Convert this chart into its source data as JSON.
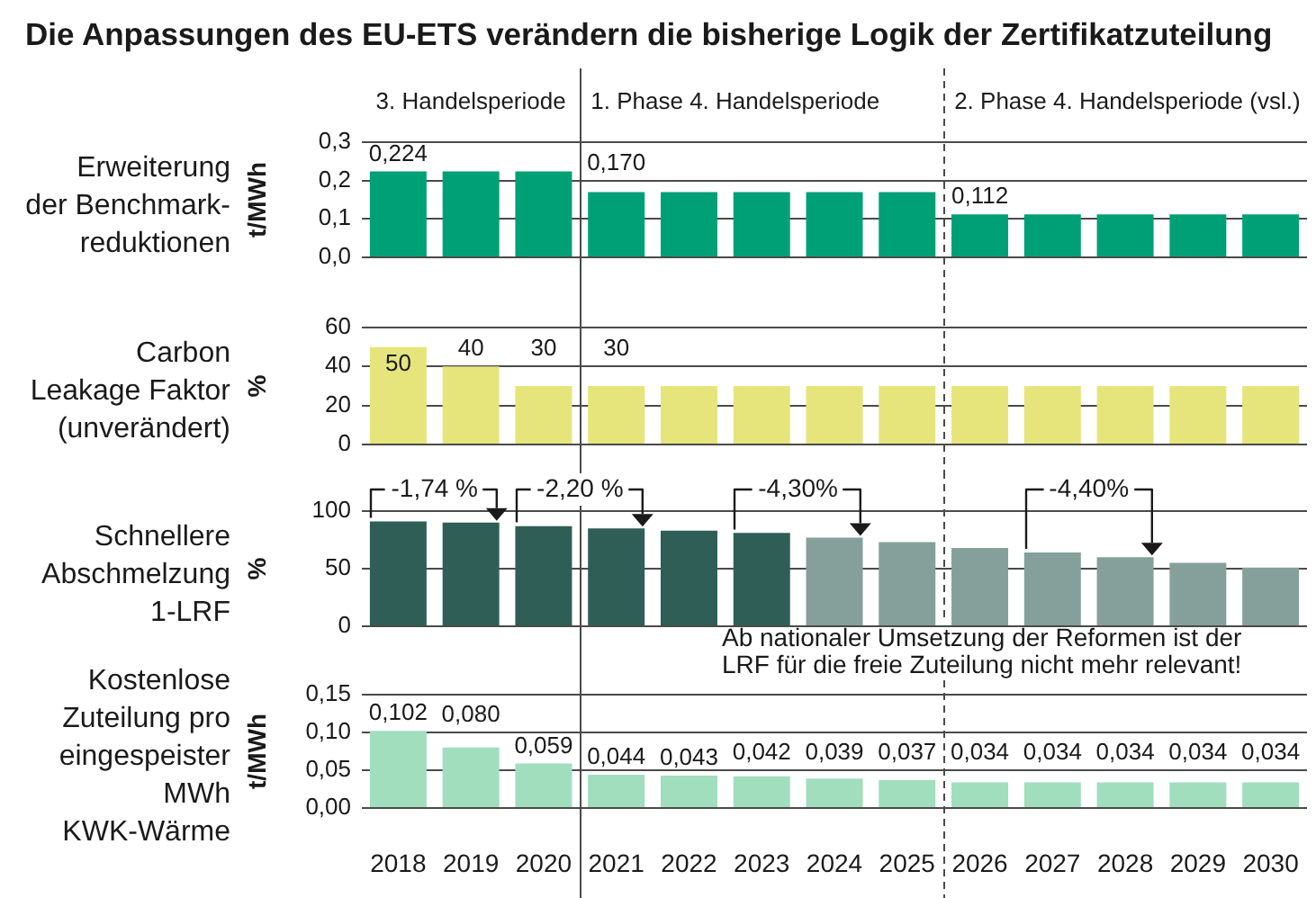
{
  "chart_data": [
    {
      "type": "bar",
      "title": "Die Anpassungen des EU-ETS verändern die bisherige Logik der Zertifikatzuteilung",
      "subtitle": "Erweiterung\nder Benchmark-\nreduktionen",
      "ylabel": "t/MWh",
      "x": [
        2018,
        2019,
        2020,
        2021,
        2022,
        2023,
        2024,
        2025,
        2026,
        2027,
        2028,
        2029,
        2030
      ],
      "values": [
        0.224,
        0.224,
        0.224,
        0.17,
        0.17,
        0.17,
        0.17,
        0.17,
        0.112,
        0.112,
        0.112,
        0.112,
        0.112
      ],
      "color": "#00a077",
      "value_labels": [
        "0,224",
        null,
        null,
        "0,170",
        null,
        null,
        null,
        null,
        "0,112",
        null,
        null,
        null,
        null
      ],
      "xlim": [
        2017.5,
        2030.5
      ],
      "ylim": [
        0,
        0.3
      ],
      "yticks": [
        {
          "value": 0,
          "label": "0,0"
        },
        {
          "value": 0.1,
          "label": "0,1"
        },
        {
          "value": 0.2,
          "label": "0,2"
        },
        {
          "value": 0.3,
          "label": "0,3"
        }
      ],
      "grid": "y",
      "tick_labels": "y",
      "annotations": [
        "3. Handelsperiode"
      ],
      "ref_lines": [
        {
          "axis": "x",
          "value": 2020.5,
          "line_style": "solid",
          "color": "#4a4a4a",
          "label": "1. Phase 4. Handelsperiode"
        },
        {
          "axis": "x",
          "value": 2025.5,
          "line_style": "dashed",
          "color": "#4a4a4a",
          "label": "2. Phase 4. Handelsperiode (vsl.)"
        }
      ]
    },
    {
      "type": "bar",
      "title": "Carbon\nLeakage Faktor\n(unverändert)",
      "ylabel": "%",
      "x": [
        2018,
        2019,
        2020,
        2021,
        2022,
        2023,
        2024,
        2025,
        2026,
        2027,
        2028,
        2029,
        2030
      ],
      "values": [
        50,
        40,
        30,
        30,
        30,
        30,
        30,
        30,
        30,
        30,
        30,
        30,
        30
      ],
      "color": "#e6e57c",
      "value_labels": [
        "50",
        "40",
        "30",
        "30",
        null,
        null,
        null,
        null,
        null,
        null,
        null,
        null,
        null
      ],
      "xlim": [
        2017.5,
        2030.5
      ],
      "ylim": [
        0,
        60
      ],
      "yticks": [
        0,
        20,
        40,
        60
      ],
      "grid": "y",
      "tick_labels": "y",
      "ref_lines": [
        {
          "axis": "x",
          "value": 2020.5,
          "line_style": "solid",
          "color": "#4a4a4a"
        },
        {
          "axis": "x",
          "value": 2025.5,
          "line_style": "dashed",
          "color": "#4a4a4a"
        }
      ]
    },
    {
      "type": "bar",
      "title": "Schnellere\nAbschmelzung\n1-LRF",
      "ylabel": "%",
      "x": [
        2018,
        2019,
        2020,
        2021,
        2022,
        2023,
        2024,
        2025,
        2026,
        2027,
        2028,
        2029,
        2030
      ],
      "values": [
        91,
        90,
        87,
        85,
        83,
        81,
        77,
        73,
        68,
        64,
        60,
        55,
        51
      ],
      "colors": [
        "#2f5e57",
        "#2f5e57",
        "#2f5e57",
        "#2f5e57",
        "#2f5e57",
        "#2f5e57",
        "#85a09a",
        "#85a09a",
        "#85a09a",
        "#85a09a",
        "#85a09a",
        "#85a09a",
        "#85a09a"
      ],
      "xlim": [
        2017.5,
        2030.5
      ],
      "ylim": [
        0,
        100
      ],
      "yticks": [
        0,
        50,
        100
      ],
      "grid": "y",
      "tick_labels": "y",
      "annotations": [
        {
          "text": "-1,74 %",
          "x": 2019,
          "y": 90
        },
        {
          "text": "-2,20 %",
          "x": 2021,
          "y": 85
        },
        {
          "text": "-4,30%",
          "x": 2024,
          "y": 77
        },
        {
          "text": "-4,40%",
          "x": 2028,
          "y": 60
        },
        "Ab nationaler Umsetzung der Reformen ist der LRF für die freie Zuteilung nicht mehr relevant!"
      ],
      "ref_lines": [
        {
          "axis": "x",
          "value": 2020.5,
          "line_style": "solid",
          "color": "#4a4a4a"
        },
        {
          "axis": "x",
          "value": 2025.5,
          "line_style": "dashed",
          "color": "#4a4a4a"
        }
      ]
    },
    {
      "type": "bar",
      "title": "Kostenlose\nZuteilung pro\neingespeister\nMWh\nKWK-Wärme",
      "ylabel": "t/MWh",
      "x": [
        2018,
        2019,
        2020,
        2021,
        2022,
        2023,
        2024,
        2025,
        2026,
        2027,
        2028,
        2029,
        2030
      ],
      "values": [
        0.102,
        0.08,
        0.059,
        0.044,
        0.043,
        0.042,
        0.039,
        0.037,
        0.034,
        0.034,
        0.034,
        0.034,
        0.034
      ],
      "color": "#a0debe",
      "value_labels": [
        "0,102",
        "0,080",
        "0,059",
        "0,044",
        "0,043",
        "0,042",
        "0,039",
        "0,037",
        "0,034",
        "0,034",
        "0,034",
        "0,034",
        "0,034"
      ],
      "xlim": [
        2017.5,
        2030.5
      ],
      "xticks": [
        2018,
        2019,
        2020,
        2021,
        2022,
        2023,
        2024,
        2025,
        2026,
        2027,
        2028,
        2029,
        2030
      ],
      "ylim": [
        0,
        0.15
      ],
      "yticks": [
        {
          "value": 0,
          "label": "0,00"
        },
        {
          "value": 0.05,
          "label": "0,05"
        },
        {
          "value": 0.1,
          "label": "0,10"
        },
        {
          "value": 0.15,
          "label": "0,15"
        }
      ],
      "grid": "y",
      "ref_lines": [
        {
          "axis": "x",
          "value": 2020.5,
          "line_style": "solid",
          "color": "#4a4a4a"
        },
        {
          "axis": "x",
          "value": 2025.5,
          "line_style": "dashed",
          "color": "#4a4a4a"
        }
      ]
    }
  ]
}
